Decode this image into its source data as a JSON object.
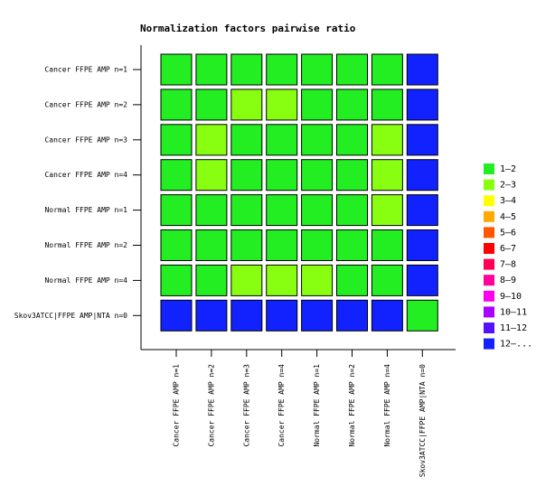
{
  "chart_data": {
    "type": "heatmap",
    "title": "Normalization factors pairwise ratio",
    "rows": [
      "Cancer FFPE AMP n=1",
      "Cancer FFPE AMP n=2",
      "Cancer FFPE AMP n=3",
      "Cancer FFPE AMP n=4",
      "Normal FFPE AMP n=1",
      "Normal FFPE AMP n=2",
      "Normal FFPE AMP n=4",
      "Skov3ATCC|FFPE AMP|NTA n=0"
    ],
    "columns": [
      "Cancer FFPE AMP n=1",
      "Cancer FFPE AMP n=2",
      "Cancer FFPE AMP n=3",
      "Cancer FFPE AMP n=4",
      "Normal FFPE AMP n=1",
      "Normal FFPE AMP n=2",
      "Normal FFPE AMP n=4",
      "Skov3ATCC|FFPE AMP|NTA n=0"
    ],
    "values": [
      [
        1,
        1.5,
        1.5,
        1.5,
        1.5,
        1.5,
        1.5,
        15
      ],
      [
        1.5,
        1,
        2.5,
        2.5,
        1.5,
        1.5,
        1.5,
        15
      ],
      [
        1.5,
        2.5,
        1,
        1.5,
        1.5,
        1.5,
        2.5,
        15
      ],
      [
        1.5,
        2.5,
        1.5,
        1,
        1.5,
        1.5,
        2.5,
        15
      ],
      [
        1.5,
        1.5,
        1.5,
        1.5,
        1,
        1.5,
        2.5,
        15
      ],
      [
        1.5,
        1.5,
        1.5,
        1.5,
        1.5,
        1,
        1.5,
        15
      ],
      [
        1.5,
        1.5,
        2.5,
        2.5,
        2.5,
        1.5,
        1,
        15
      ],
      [
        15,
        15,
        15,
        15,
        15,
        15,
        15,
        1
      ]
    ],
    "legend": [
      {
        "label": "1–2",
        "min": 1,
        "max": 2,
        "color": "#22ee22"
      },
      {
        "label": "2–3",
        "min": 2,
        "max": 3,
        "color": "#88ff11"
      },
      {
        "label": "3–4",
        "min": 3,
        "max": 4,
        "color": "#ffff00"
      },
      {
        "label": "4–5",
        "min": 4,
        "max": 5,
        "color": "#ffaa00"
      },
      {
        "label": "5–6",
        "min": 5,
        "max": 6,
        "color": "#ff5500"
      },
      {
        "label": "6–7",
        "min": 6,
        "max": 7,
        "color": "#ff0000"
      },
      {
        "label": "7–8",
        "min": 7,
        "max": 8,
        "color": "#ff0055"
      },
      {
        "label": "8–9",
        "min": 8,
        "max": 9,
        "color": "#ff0099"
      },
      {
        "label": "9–10",
        "min": 9,
        "max": 10,
        "color": "#ff00ee"
      },
      {
        "label": "10–11",
        "min": 10,
        "max": 11,
        "color": "#aa00ff"
      },
      {
        "label": "11–12",
        "min": 11,
        "max": 12,
        "color": "#5511ff"
      },
      {
        "label": "12–...",
        "min": 12,
        "max": null,
        "color": "#1122ff"
      }
    ]
  }
}
